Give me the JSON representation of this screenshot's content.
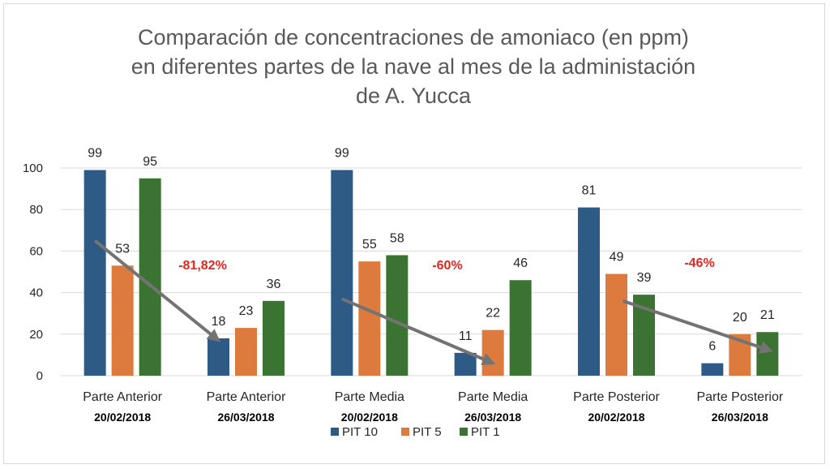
{
  "colors": {
    "PIT 10": "#2e5a86",
    "PIT 5": "#dd7a3d",
    "PIT 1": "#3b7332",
    "annotation": "#e0271f",
    "arrow": "#737373",
    "grid": "#d9d9d9"
  },
  "chart_data": {
    "type": "bar",
    "title_lines": [
      "Comparación de concentraciones de amoniaco (en ppm)",
      "en diferentes partes de la nave al mes de la administación",
      "de A. Yucca"
    ],
    "categories": [
      {
        "label": "Parte Anterior",
        "date": "20/02/2018"
      },
      {
        "label": "Parte Anterior",
        "date": "26/03/2018"
      },
      {
        "label": "Parte Media",
        "date": "20/02/2018"
      },
      {
        "label": "Parte Media",
        "date": "26/03/2018"
      },
      {
        "label": "Parte Posterior",
        "date": "20/02/2018"
      },
      {
        "label": "Parte Posterior",
        "date": "26/03/2018"
      }
    ],
    "series": [
      {
        "name": "PIT 10",
        "values": [
          99,
          18,
          99,
          11,
          81,
          6
        ]
      },
      {
        "name": "PIT 5",
        "values": [
          53,
          23,
          55,
          22,
          49,
          20
        ]
      },
      {
        "name": "PIT 1",
        "values": [
          95,
          36,
          58,
          46,
          39,
          21
        ]
      }
    ],
    "ylim": [
      0,
      100
    ],
    "yticks": [
      0,
      20,
      40,
      60,
      80,
      100
    ],
    "grid": true,
    "legend_position": "bottom",
    "annotations": [
      "-81,82%",
      "-60%",
      "-46%"
    ]
  }
}
